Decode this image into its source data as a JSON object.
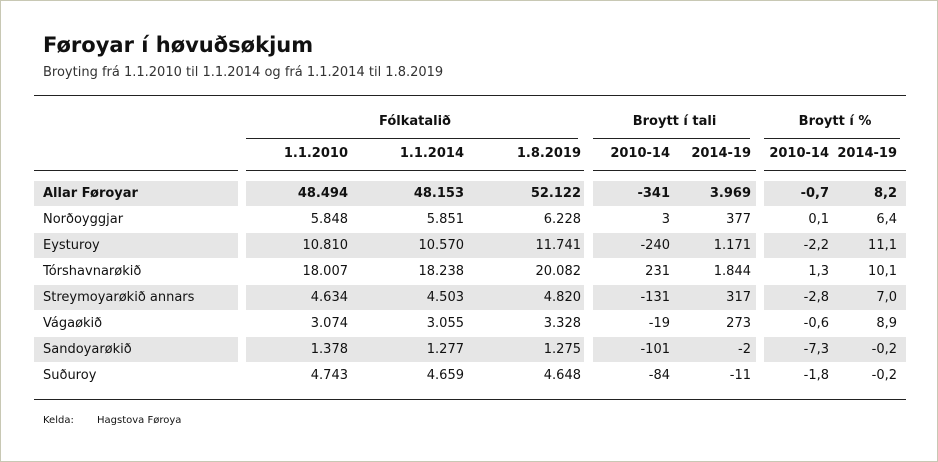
{
  "header": {
    "title": "Føroyar í høvuðsøkjum",
    "subtitle": "Broyting frá 1.1.2010 til 1.1.2014 og frá 1.1.2014 til 1.8.2019"
  },
  "table": {
    "groups": [
      {
        "label": "Fólkatalið",
        "span": 3
      },
      {
        "label": "Broytt í tali",
        "span": 2
      },
      {
        "label": "Broytt í %",
        "span": 2
      }
    ],
    "columns": [
      "1.1.2010",
      "1.1.2014",
      "1.8.2019",
      "2010-14",
      "2014-19",
      "2010-14",
      "2014-19"
    ],
    "rows": [
      {
        "label": "Allar Føroyar",
        "values": [
          "48.494",
          "48.153",
          "52.122",
          "-341",
          "3.969",
          "-0,7",
          "8,2"
        ]
      },
      {
        "label": "Norðoyggjar",
        "values": [
          "5.848",
          "5.851",
          "6.228",
          "3",
          "377",
          "0,1",
          "6,4"
        ]
      },
      {
        "label": "Eysturoy",
        "values": [
          "10.810",
          "10.570",
          "11.741",
          "-240",
          "1.171",
          "-2,2",
          "11,1"
        ]
      },
      {
        "label": "Tórshavnarøkið",
        "values": [
          "18.007",
          "18.238",
          "20.082",
          "231",
          "1.844",
          "1,3",
          "10,1"
        ]
      },
      {
        "label": "Streymoyarøkið annars",
        "values": [
          "4.634",
          "4.503",
          "4.820",
          "-131",
          "317",
          "-2,8",
          "7,0"
        ]
      },
      {
        "label": "Vágaøkið",
        "values": [
          "3.074",
          "3.055",
          "3.328",
          "-19",
          "273",
          "-0,6",
          "8,9"
        ]
      },
      {
        "label": "Sandoyarøkið",
        "values": [
          "1.378",
          "1.277",
          "1.275",
          "-101",
          "-2",
          "-7,3",
          "-0,2"
        ]
      },
      {
        "label": "Suðuroy",
        "values": [
          "4.743",
          "4.659",
          "4.648",
          "-84",
          "-11",
          "-1,8",
          "-0,2"
        ]
      }
    ]
  },
  "source": {
    "label": "Kelda:",
    "text": "Hagstova Føroya"
  }
}
